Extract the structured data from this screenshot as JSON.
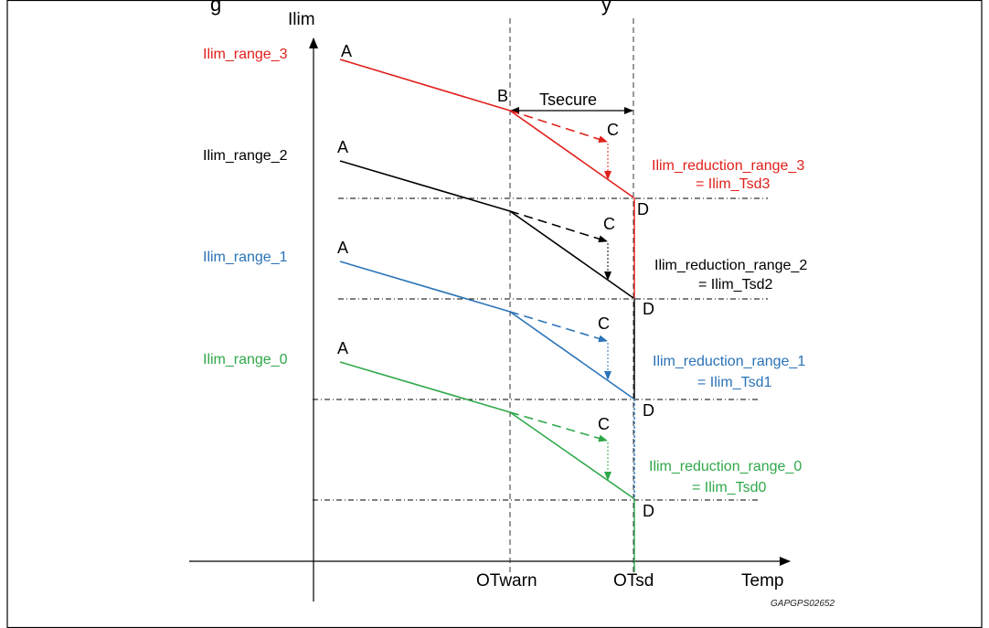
{
  "title_fragment": "g                                                                    y",
  "axes": {
    "y_label": "Ilim",
    "x_label": "Temp",
    "x_ticks": [
      "OTwarn",
      "OTsd"
    ]
  },
  "colors": {
    "red": "#e0201b",
    "black": "#000000",
    "blue": "#2a73b8",
    "green": "#2fa84a"
  },
  "ranges": [
    {
      "label": "Ilim_range_3",
      "color": "red",
      "start_label": "A",
      "knee_label": "B",
      "target_label": "C",
      "end_label": "D",
      "reduction_label": "Ilim_reduction_range_3",
      "tsd_label": "= Ilim_Tsd3"
    },
    {
      "label": "Ilim_range_2",
      "color": "black",
      "start_label": "A",
      "target_label": "C",
      "end_label": "D",
      "reduction_label": "Ilim_reduction_range_2",
      "tsd_label": "= Ilim_Tsd2"
    },
    {
      "label": "Ilim_range_1",
      "color": "blue",
      "start_label": "A",
      "target_label": "C",
      "end_label": "D",
      "reduction_label": "Ilim_reduction_range_1",
      "tsd_label": "= Ilim_Tsd1"
    },
    {
      "label": "Ilim_range_0",
      "color": "green",
      "start_label": "A",
      "target_label": "C",
      "end_label": "D",
      "reduction_label": "Ilim_reduction_range_0",
      "tsd_label": "= Ilim_Tsd0"
    }
  ],
  "tsecure_label": "Tsecure",
  "figure_ref": "GAPGPS02652"
}
